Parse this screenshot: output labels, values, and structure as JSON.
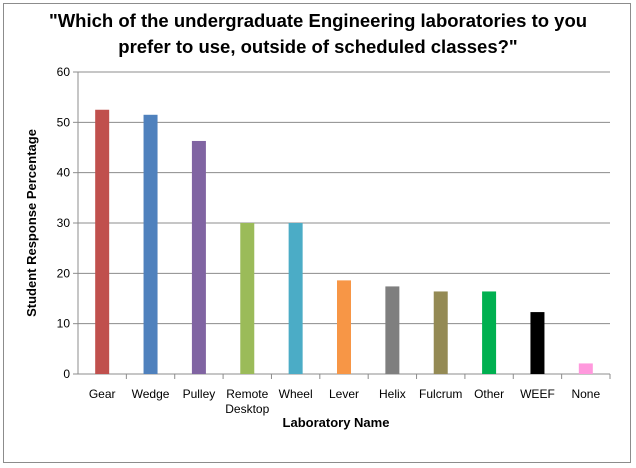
{
  "chart_data": {
    "type": "bar",
    "title": {
      "line1": "\"Which of the undergraduate Engineering laboratories to you",
      "line2": "prefer to use, outside of scheduled classes?\""
    },
    "xlabel": "Laboratory Name",
    "ylabel": "Student Response Percentage",
    "ylim": [
      0,
      60
    ],
    "yticks": [
      0,
      10,
      20,
      30,
      40,
      50,
      60
    ],
    "grid": true,
    "legend": "none",
    "categories": [
      [
        "Gear"
      ],
      [
        "Wedge"
      ],
      [
        "Pulley"
      ],
      [
        "Remote",
        "Desktop"
      ],
      [
        "Wheel"
      ],
      [
        "Lever"
      ],
      [
        "Helix"
      ],
      [
        "Fulcrum"
      ],
      [
        "Other"
      ],
      [
        "WEEF"
      ],
      [
        "None"
      ]
    ],
    "values": [
      52.5,
      51.5,
      46.3,
      30.0,
      30.0,
      18.6,
      17.4,
      16.4,
      16.4,
      12.3,
      2.1
    ],
    "colors": [
      "#c0504d",
      "#4f81bd",
      "#8064a2",
      "#9bbb59",
      "#4bacc6",
      "#f79646",
      "#7f7f7f",
      "#948a54",
      "#00b050",
      "#000000",
      "#ff99dd"
    ]
  }
}
